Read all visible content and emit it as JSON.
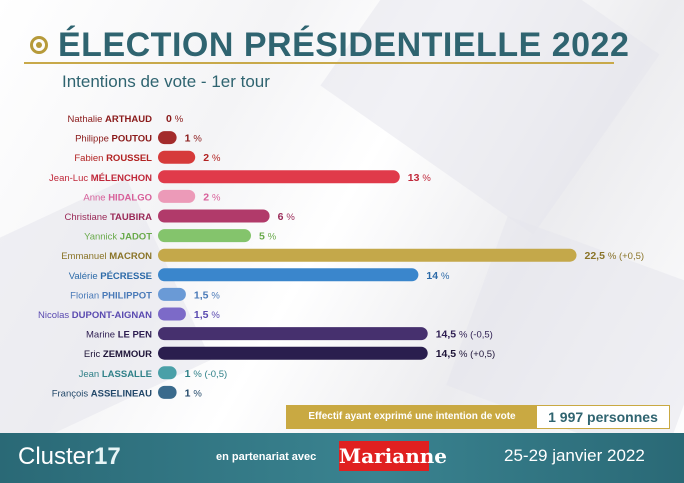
{
  "header": {
    "title": "ÉLECTION PRÉSIDENTIELLE 2022",
    "subtitle": "Intentions de vote - 1er tour"
  },
  "chart_data": {
    "type": "bar",
    "orientation": "horizontal",
    "title": "ÉLECTION PRÉSIDENTIELLE 2022",
    "subtitle": "Intentions de vote - 1er tour",
    "unit": "%",
    "xlim": [
      0,
      23
    ],
    "grid": false,
    "legend": "none",
    "categories": [
      "Nathalie ARTHAUD",
      "Philippe POUTOU",
      "Fabien ROUSSEL",
      "Jean-Luc MÉLENCHON",
      "Anne HIDALGO",
      "Christiane TAUBIRA",
      "Yannick JADOT",
      "Emmanuel MACRON",
      "Valérie PÉCRESSE",
      "Florian PHILIPPOT",
      "Nicolas DUPONT-AIGNAN",
      "Marine LE PEN",
      "Eric ZEMMOUR",
      "Jean LASSALLE",
      "François ASSELINEAU"
    ],
    "bars": [
      {
        "first": "Nathalie",
        "last": "ARTHAUD",
        "value": 0,
        "value_text": "0",
        "change": "",
        "color": "#8a1a1a",
        "label_color": "#8a1a1a"
      },
      {
        "first": "Philippe",
        "last": "POUTOU",
        "value": 1,
        "value_text": "1",
        "change": "",
        "color": "#a32b2b",
        "label_color": "#8a1a1a"
      },
      {
        "first": "Fabien",
        "last": "ROUSSEL",
        "value": 2,
        "value_text": "2",
        "change": "",
        "color": "#d63a3a",
        "label_color": "#b22222"
      },
      {
        "first": "Jean-Luc",
        "last": "MÉLENCHON",
        "value": 13,
        "value_text": "13",
        "change": "",
        "color": "#e03a4a",
        "label_color": "#c0283a"
      },
      {
        "first": "Anne",
        "last": "HIDALGO",
        "value": 2,
        "value_text": "2",
        "change": "",
        "color": "#ec9ab8",
        "label_color": "#d8609a"
      },
      {
        "first": "Christiane",
        "last": "TAUBIRA",
        "value": 6,
        "value_text": "6",
        "change": "",
        "color": "#b13a6a",
        "label_color": "#9a2a58"
      },
      {
        "first": "Yannick",
        "last": "JADOT",
        "value": 5,
        "value_text": "5",
        "change": "",
        "color": "#84c46c",
        "label_color": "#6aaa4c"
      },
      {
        "first": "Emmanuel",
        "last": "MACRON",
        "value": 22.5,
        "value_text": "22,5",
        "change": "(+0,5)",
        "color": "#c4a84a",
        "label_color": "#8a7428"
      },
      {
        "first": "Valérie",
        "last": "PÉCRESSE",
        "value": 14,
        "value_text": "14",
        "change": "",
        "color": "#3a86cc",
        "label_color": "#2c6aa8"
      },
      {
        "first": "Florian",
        "last": "PHILIPPOT",
        "value": 1.5,
        "value_text": "1,5",
        "change": "",
        "color": "#6a9ad6",
        "label_color": "#4a7ab8"
      },
      {
        "first": "Nicolas",
        "last": "DUPONT-AIGNAN",
        "value": 1.5,
        "value_text": "1,5",
        "change": "",
        "color": "#7c6ac8",
        "label_color": "#5a4ab0"
      },
      {
        "first": "Marine",
        "last": "LE PEN",
        "value": 14.5,
        "value_text": "14,5",
        "change": "(-0,5)",
        "color": "#46306e",
        "label_color": "#2e1e52"
      },
      {
        "first": "Eric",
        "last": "ZEMMOUR",
        "value": 14.5,
        "value_text": "14,5",
        "change": "(+0,5)",
        "color": "#2a1e4e",
        "label_color": "#1e1438"
      },
      {
        "first": "Jean",
        "last": "LASSALLE",
        "value": 1,
        "value_text": "1",
        "change": "(-0,5)",
        "color": "#4aa0a8",
        "label_color": "#2f8088"
      },
      {
        "first": "François",
        "last": "ASSELINEAU",
        "value": 1,
        "value_text": "1",
        "change": "",
        "color": "#3a6a8c",
        "label_color": "#23496a"
      }
    ]
  },
  "sample": {
    "label": "Effectif ayant exprimé une intention de vote",
    "value": "1 997 personnes"
  },
  "footer": {
    "brand_text": "Cluster",
    "brand_number": "17",
    "partner_text": "en partenariat avec",
    "partner_logo": "Marianne",
    "date": "25-29 janvier 2022"
  },
  "colors": {
    "teal": "#2f6470",
    "gold": "#c9a942",
    "footer": "#2f7280"
  }
}
